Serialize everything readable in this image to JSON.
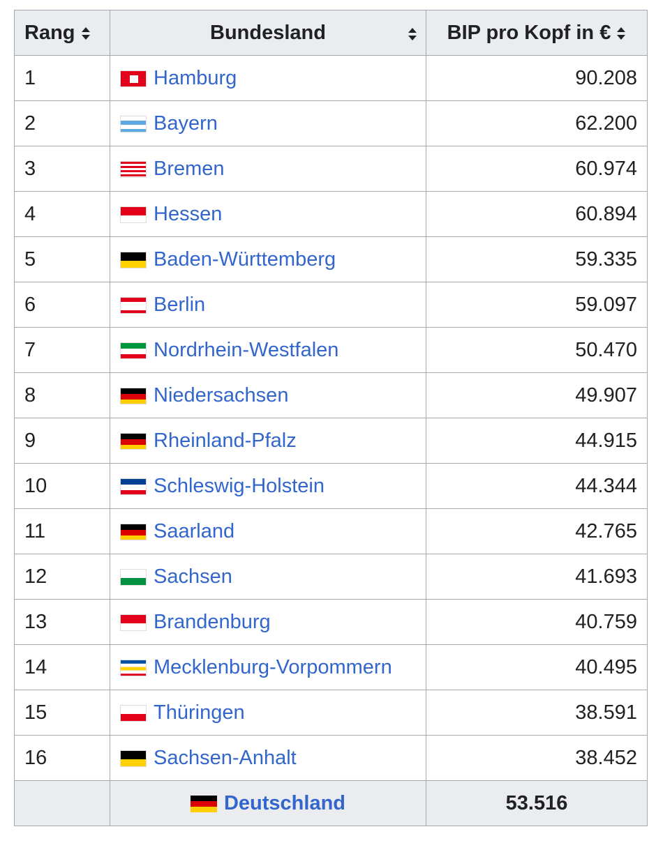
{
  "table": {
    "headers": [
      "Rang",
      "Bundesland",
      "BIP pro Kopf in €"
    ],
    "rows": [
      [
        "1",
        "Hamburg",
        "90.208"
      ],
      [
        "2",
        "Bayern",
        "62.200"
      ],
      [
        "3",
        "Bremen",
        "60.974"
      ],
      [
        "4",
        "Hessen",
        "60.894"
      ],
      [
        "5",
        "Baden-Württemberg",
        "59.335"
      ],
      [
        "6",
        "Berlin",
        "59.097"
      ],
      [
        "7",
        "Nordrhein-Westfalen",
        "50.470"
      ],
      [
        "8",
        "Niedersachsen",
        "49.907"
      ],
      [
        "9",
        "Rheinland-Pfalz",
        "44.915"
      ],
      [
        "10",
        "Schleswig-Holstein",
        "44.344"
      ],
      [
        "11",
        "Saarland",
        "42.765"
      ],
      [
        "12",
        "Sachsen",
        "41.693"
      ],
      [
        "13",
        "Brandenburg",
        "40.759"
      ],
      [
        "14",
        "Mecklenburg-Vorpommern",
        "40.495"
      ],
      [
        "15",
        "Thüringen",
        "38.591"
      ],
      [
        "16",
        "Sachsen-Anhalt",
        "38.452"
      ]
    ],
    "footer": [
      "Deutschland",
      "53.516"
    ]
  }
}
